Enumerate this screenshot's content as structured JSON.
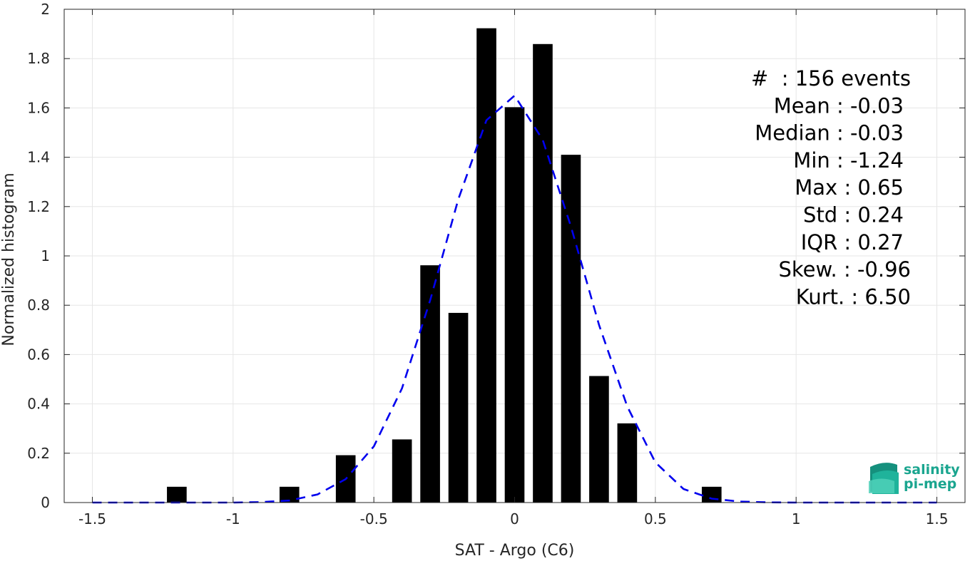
{
  "chart_data": {
    "type": "bar",
    "xlabel": "SAT - Argo (C6)",
    "ylabel": "Normalized histogram",
    "xlim": [
      -1.6,
      1.6
    ],
    "ylim": [
      0,
      2
    ],
    "xticks": [
      -1.5,
      -1,
      -0.5,
      0,
      0.5,
      1,
      1.5
    ],
    "xtick_labels": [
      "-1.5",
      "-1",
      "-0.5",
      "0",
      "0.5",
      "1",
      "1.5"
    ],
    "yticks": [
      0,
      0.2,
      0.4,
      0.6,
      0.8,
      1,
      1.2,
      1.4,
      1.6,
      1.8,
      2
    ],
    "ytick_labels": [
      "0",
      "0.2",
      "0.4",
      "0.6",
      "0.8",
      "1",
      "1.2",
      "1.4",
      "1.6",
      "1.8",
      "2"
    ],
    "grid": true,
    "bar_width": 0.07,
    "bars": {
      "x": [
        -1.2,
        -0.8,
        -0.6,
        -0.4,
        -0.3,
        -0.2,
        -0.1,
        0.0,
        0.1,
        0.2,
        0.3,
        0.4,
        0.7
      ],
      "values": [
        0.064,
        0.064,
        0.192,
        0.256,
        0.962,
        0.769,
        1.923,
        1.603,
        1.859,
        1.41,
        0.513,
        0.321,
        0.064
      ],
      "color": "#000000"
    },
    "fit_curve": {
      "style": "dashed",
      "color": "#0000ee",
      "x": [
        -1.5,
        -1.4,
        -1.3,
        -1.2,
        -1.1,
        -1.0,
        -0.9,
        -0.8,
        -0.7,
        -0.6,
        -0.5,
        -0.4,
        -0.3,
        -0.2,
        -0.1,
        0.0,
        0.1,
        0.2,
        0.3,
        0.4,
        0.5,
        0.6,
        0.7,
        0.8,
        0.9,
        1.0,
        1.1,
        1.2,
        1.3,
        1.4,
        1.5
      ],
      "y": [
        0.0,
        0.0,
        0.0,
        0.0,
        0.0,
        0.0,
        0.002,
        0.008,
        0.033,
        0.095,
        0.228,
        0.463,
        0.82,
        1.23,
        1.55,
        1.65,
        1.47,
        1.12,
        0.72,
        0.39,
        0.163,
        0.055,
        0.016,
        0.004,
        0.001,
        0.0,
        0.0,
        0.0,
        0.0,
        0.0,
        0.0
      ]
    },
    "annotations": [
      "#  : 156 events",
      "Mean : -0.03",
      "Median : -0.03",
      "Min : -1.24",
      "Max : 0.65",
      "Std : 0.24",
      "IQR : 0.27",
      "Skew. : -0.96",
      "Kurt. : 6.50"
    ]
  },
  "logo": {
    "line1": "salinity",
    "line2": "pi-mep",
    "color": "#1aa58f"
  }
}
